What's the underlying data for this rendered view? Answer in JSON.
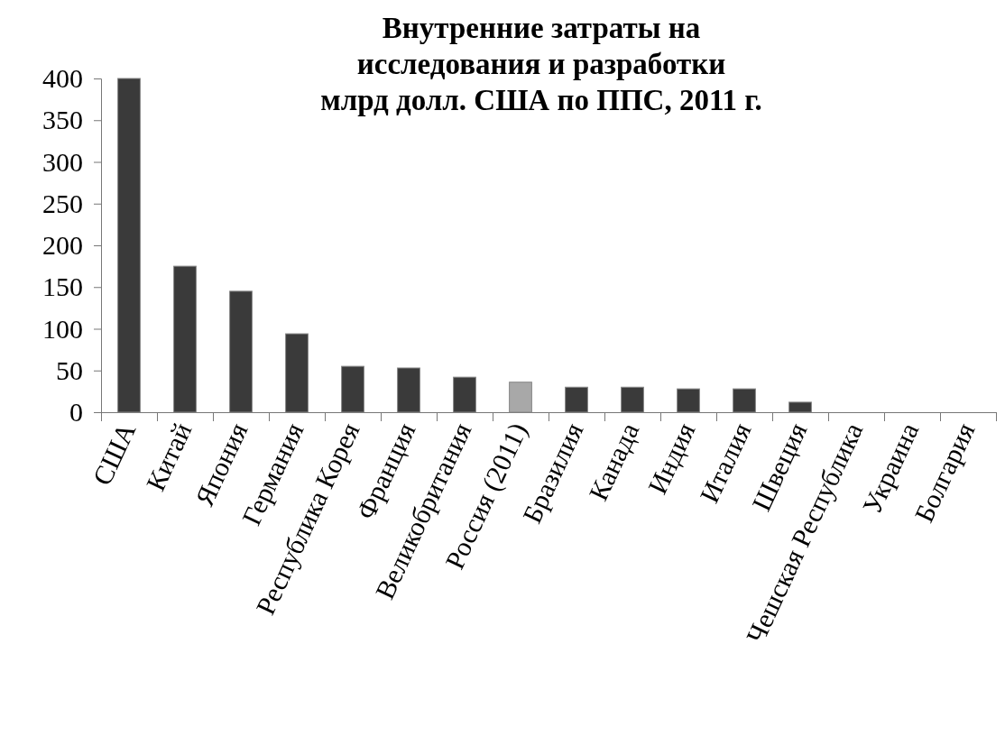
{
  "chart_data": {
    "type": "bar",
    "title": "Внутренние затраты на\nисследования и разработки\nмлрд  долл. США по ППС, 2011 г.",
    "categories": [
      "США",
      "Китай",
      "Япония",
      "Германия",
      "Республика Корея",
      "Франция",
      "Великобритания",
      "Россия (2011)",
      "Бразилия",
      "Канада",
      "Индия",
      "Италия",
      "Швеция",
      "Чешская Республика",
      "Украина",
      "Болгария"
    ],
    "values": [
      400,
      175,
      145,
      94,
      55,
      53,
      42,
      36,
      30,
      30,
      28,
      28,
      12,
      0,
      0,
      0
    ],
    "colors": [
      "#3a3a3a",
      "#3a3a3a",
      "#3a3a3a",
      "#3a3a3a",
      "#3a3a3a",
      "#3a3a3a",
      "#3a3a3a",
      "#a8a8a8",
      "#3a3a3a",
      "#3a3a3a",
      "#3a3a3a",
      "#3a3a3a",
      "#3a3a3a",
      "#3a3a3a",
      "#3a3a3a",
      "#3a3a3a"
    ],
    "ylim": [
      0,
      400
    ],
    "yticks": [
      0,
      50,
      100,
      150,
      200,
      250,
      300,
      350,
      400
    ],
    "grid": false
  }
}
